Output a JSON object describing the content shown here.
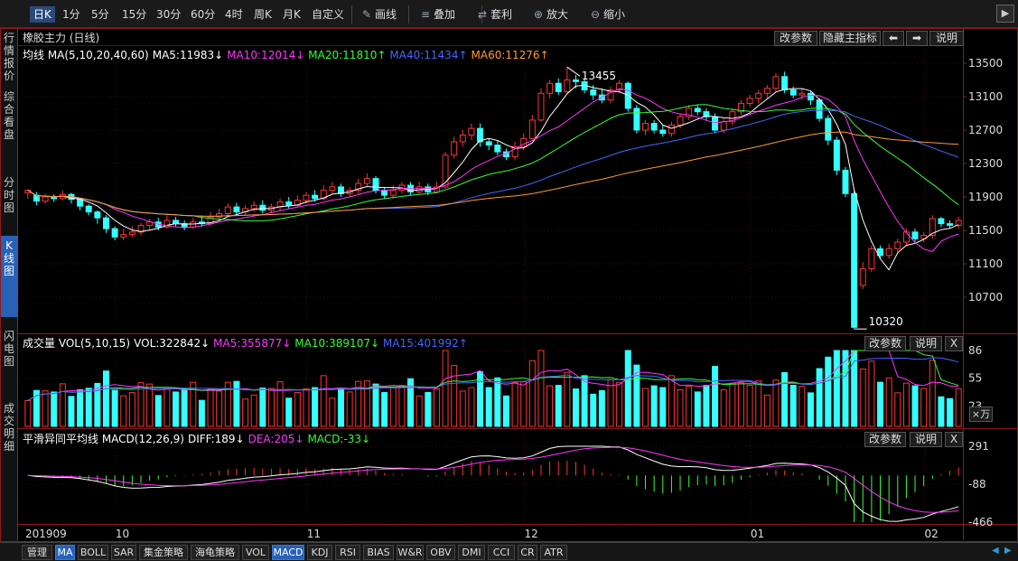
{
  "toolbar": {
    "periods": [
      {
        "label": "日K",
        "active": true
      },
      {
        "label": "1分"
      },
      {
        "label": "5分"
      },
      {
        "label": "15分"
      },
      {
        "label": "30分"
      },
      {
        "label": "60分"
      },
      {
        "label": "4时"
      },
      {
        "label": "周K"
      },
      {
        "label": "月K"
      },
      {
        "label": "自定义"
      }
    ],
    "tools": [
      {
        "label": "画线",
        "icon": "pen-icon"
      },
      {
        "label": "叠加",
        "icon": "stack-icon"
      },
      {
        "label": "套利",
        "icon": "arbitrage-icon"
      },
      {
        "label": "放大",
        "icon": "zoom-in-icon"
      },
      {
        "label": "缩小",
        "icon": "zoom-out-icon"
      }
    ]
  },
  "sidebar": {
    "items": [
      {
        "label": "行情报价"
      },
      {
        "label": "综合看盘"
      },
      {
        "label": "分时图"
      },
      {
        "label": "K线图",
        "active": true
      },
      {
        "label": "闪电图"
      },
      {
        "label": "成交明细"
      }
    ]
  },
  "main": {
    "title": "橡胶主力 (日线)",
    "buttons": {
      "params": "改参数",
      "hide": "隐藏主指标",
      "left": "⬅",
      "right": "➡",
      "help": "说明"
    },
    "ma": [
      {
        "label": "均线 MA(5,10,20,40,60)",
        "color": "#ffffff"
      },
      {
        "label": "MA5:11983↓",
        "color": "#ffffff"
      },
      {
        "label": "MA10:12014↓",
        "color": "#ff33ff"
      },
      {
        "label": "MA20:11810↑",
        "color": "#33ff33"
      },
      {
        "label": "MA40:11434↑",
        "color": "#4466ff"
      },
      {
        "label": "MA60:11276↑",
        "color": "#ff9933"
      }
    ],
    "y_ticks": [
      "13500",
      "13100",
      "12700",
      "12300",
      "11900",
      "11500",
      "11100",
      "10700"
    ],
    "high_label": "13455",
    "low_label": "10320"
  },
  "volume": {
    "labels": [
      {
        "label": "成交量 VOL(5,10,15)",
        "color": "#ffffff"
      },
      {
        "label": "VOL:322842↓",
        "color": "#ffffff"
      },
      {
        "label": "MA5:355877↓",
        "color": "#ff33ff"
      },
      {
        "label": "MA10:389107↓",
        "color": "#33ff33"
      },
      {
        "label": "MA15:401992↑",
        "color": "#4466ff"
      }
    ],
    "buttons": {
      "params": "改参数",
      "help": "说明",
      "close": "X"
    },
    "y_ticks": [
      "86",
      "55",
      "23"
    ],
    "unit": "×万"
  },
  "macd": {
    "labels": [
      {
        "label": "平滑异同平均线 MACD(12,26,9)",
        "color": "#ffffff"
      },
      {
        "label": "DIFF:189↓",
        "color": "#ffffff"
      },
      {
        "label": "DEA:205↓",
        "color": "#ff33ff"
      },
      {
        "label": "MACD:-33↓",
        "color": "#33ff33"
      }
    ],
    "buttons": {
      "params": "改参数",
      "help": "说明",
      "close": "X"
    },
    "y_ticks": [
      "291",
      "-88",
      "-466"
    ]
  },
  "x_axis": [
    "201909",
    "10",
    "11",
    "12",
    "01",
    "02"
  ],
  "bottom_tabs": [
    {
      "label": "管理"
    },
    {
      "label": "MA",
      "active": true
    },
    {
      "label": "BOLL"
    },
    {
      "label": "SAR"
    },
    {
      "label": "集金策略"
    },
    {
      "label": "海龟策略"
    },
    {
      "label": "VOL"
    },
    {
      "label": "MACD",
      "active": true
    },
    {
      "label": "KDJ"
    },
    {
      "label": "RSI"
    },
    {
      "label": "BIAS"
    },
    {
      "label": "W&R"
    },
    {
      "label": "OBV"
    },
    {
      "label": "DMI"
    },
    {
      "label": "CCI"
    },
    {
      "label": "CR"
    },
    {
      "label": "ATR"
    }
  ],
  "chart_data": {
    "type": "candlestick",
    "symbol": "橡胶主力",
    "period": "日线",
    "ylim": [
      10320,
      13500
    ],
    "candles": [
      [
        11950,
        11980,
        11880,
        11990
      ],
      [
        11920,
        11850,
        11800,
        11960
      ],
      [
        11850,
        11900,
        11820,
        11940
      ],
      [
        11900,
        11880,
        11840,
        11930
      ],
      [
        11880,
        11930,
        11860,
        11980
      ],
      [
        11930,
        11870,
        11820,
        11950
      ],
      [
        11870,
        11790,
        11740,
        11890
      ],
      [
        11790,
        11720,
        11680,
        11810
      ],
      [
        11720,
        11650,
        11580,
        11740
      ],
      [
        11650,
        11520,
        11470,
        11680
      ],
      [
        11520,
        11420,
        11380,
        11550
      ],
      [
        11420,
        11450,
        11380,
        11520
      ],
      [
        11450,
        11480,
        11420,
        11550
      ],
      [
        11480,
        11560,
        11440,
        11590
      ],
      [
        11560,
        11600,
        11500,
        11640
      ],
      [
        11600,
        11540,
        11500,
        11650
      ],
      [
        11540,
        11620,
        11520,
        11680
      ],
      [
        11620,
        11580,
        11540,
        11660
      ],
      [
        11580,
        11540,
        11500,
        11620
      ],
      [
        11540,
        11600,
        11520,
        11650
      ],
      [
        11600,
        11580,
        11540,
        11680
      ],
      [
        11580,
        11660,
        11560,
        11720
      ],
      [
        11660,
        11700,
        11620,
        11760
      ],
      [
        11700,
        11780,
        11660,
        11820
      ],
      [
        11780,
        11720,
        11680,
        11830
      ],
      [
        11720,
        11760,
        11680,
        11800
      ],
      [
        11760,
        11800,
        11720,
        11850
      ],
      [
        11800,
        11740,
        11700,
        11860
      ],
      [
        11740,
        11780,
        11700,
        11820
      ],
      [
        11780,
        11840,
        11740,
        11880
      ],
      [
        11840,
        11800,
        11760,
        11900
      ],
      [
        11800,
        11860,
        11780,
        11920
      ],
      [
        11860,
        11920,
        11820,
        11960
      ],
      [
        11920,
        11880,
        11840,
        11980
      ],
      [
        11880,
        11980,
        11860,
        12040
      ],
      [
        11980,
        12020,
        11940,
        12080
      ],
      [
        12020,
        11940,
        11900,
        12060
      ],
      [
        11940,
        11980,
        11900,
        12020
      ],
      [
        11980,
        12060,
        11940,
        12120
      ],
      [
        12060,
        12120,
        12020,
        12180
      ],
      [
        12120,
        11980,
        11940,
        12150
      ],
      [
        11980,
        11920,
        11880,
        12020
      ],
      [
        11920,
        11980,
        11880,
        12040
      ],
      [
        11980,
        12040,
        11940,
        12080
      ],
      [
        12040,
        11960,
        11920,
        12080
      ],
      [
        11960,
        12020,
        11940,
        12080
      ],
      [
        12020,
        11960,
        11920,
        12060
      ],
      [
        11960,
        12020,
        11940,
        12080
      ],
      [
        12020,
        12400,
        12000,
        12440
      ],
      [
        12400,
        12560,
        12360,
        12620
      ],
      [
        12560,
        12640,
        12500,
        12700
      ],
      [
        12640,
        12720,
        12580,
        12780
      ],
      [
        12720,
        12560,
        12500,
        12780
      ],
      [
        12560,
        12520,
        12460,
        12600
      ],
      [
        12520,
        12440,
        12400,
        12580
      ],
      [
        12440,
        12380,
        12340,
        12480
      ],
      [
        12380,
        12500,
        12340,
        12560
      ],
      [
        12500,
        12600,
        12460,
        12660
      ],
      [
        12600,
        12820,
        12580,
        12880
      ],
      [
        12820,
        13140,
        12800,
        13200
      ],
      [
        13140,
        13260,
        13080,
        13300
      ],
      [
        13260,
        13160,
        13120,
        13320
      ],
      [
        13160,
        13300,
        13140,
        13455
      ],
      [
        13300,
        13280,
        13200,
        13360
      ],
      [
        13280,
        13180,
        13140,
        13320
      ],
      [
        13180,
        13120,
        13060,
        13240
      ],
      [
        13120,
        13060,
        13020,
        13200
      ],
      [
        13060,
        13180,
        13020,
        13220
      ],
      [
        13180,
        13260,
        13140,
        13300
      ],
      [
        13260,
        12960,
        12920,
        13280
      ],
      [
        12960,
        12700,
        12660,
        13000
      ],
      [
        12700,
        12780,
        12640,
        12820
      ],
      [
        12780,
        12700,
        12660,
        12820
      ],
      [
        12700,
        12660,
        12620,
        12760
      ],
      [
        12660,
        12760,
        12620,
        12800
      ],
      [
        12760,
        12860,
        12720,
        12900
      ],
      [
        12860,
        12960,
        12820,
        13000
      ],
      [
        12960,
        12920,
        12880,
        13000
      ],
      [
        12920,
        12860,
        12820,
        12960
      ],
      [
        12860,
        12700,
        12660,
        12900
      ],
      [
        12700,
        12800,
        12660,
        12840
      ],
      [
        12800,
        12920,
        12760,
        12960
      ],
      [
        12920,
        13020,
        12880,
        13060
      ],
      [
        13020,
        13080,
        12980,
        13120
      ],
      [
        13080,
        13140,
        13020,
        13180
      ],
      [
        13140,
        13200,
        13080,
        13240
      ],
      [
        13200,
        13340,
        13160,
        13380
      ],
      [
        13340,
        13180,
        13140,
        13400
      ],
      [
        13180,
        13120,
        13080,
        13220
      ],
      [
        13120,
        13140,
        13060,
        13200
      ],
      [
        13140,
        13060,
        13000,
        13160
      ],
      [
        13060,
        12840,
        12800,
        13080
      ],
      [
        12840,
        12580,
        12520,
        12880
      ],
      [
        12580,
        12220,
        12160,
        12620
      ],
      [
        12220,
        11940,
        11900,
        12260
      ],
      [
        11940,
        10340,
        10320,
        11980
      ],
      [
        10840,
        11040,
        10800,
        11120
      ],
      [
        11040,
        11280,
        11000,
        11320
      ],
      [
        11280,
        11200,
        11160,
        11320
      ],
      [
        11200,
        11280,
        11160,
        11340
      ],
      [
        11280,
        11360,
        11240,
        11400
      ],
      [
        11360,
        11480,
        11320,
        11520
      ],
      [
        11480,
        11400,
        11360,
        11520
      ],
      [
        11400,
        11440,
        11360,
        11480
      ],
      [
        11440,
        11640,
        11400,
        11680
      ],
      [
        11640,
        11580,
        11540,
        11660
      ],
      [
        11580,
        11560,
        11520,
        11620
      ],
      [
        11560,
        11620,
        11520,
        11660
      ]
    ],
    "ma_latest": {
      "MA5": 11983,
      "MA10": 12014,
      "MA20": 11810,
      "MA40": 11434,
      "MA60": 11276
    },
    "volume_latest": {
      "VOL": 322842,
      "MA5": 355877,
      "MA10": 389107,
      "MA15": 401992
    },
    "macd_latest": {
      "DIFF": 189,
      "DEA": 205,
      "MACD": -33
    }
  }
}
